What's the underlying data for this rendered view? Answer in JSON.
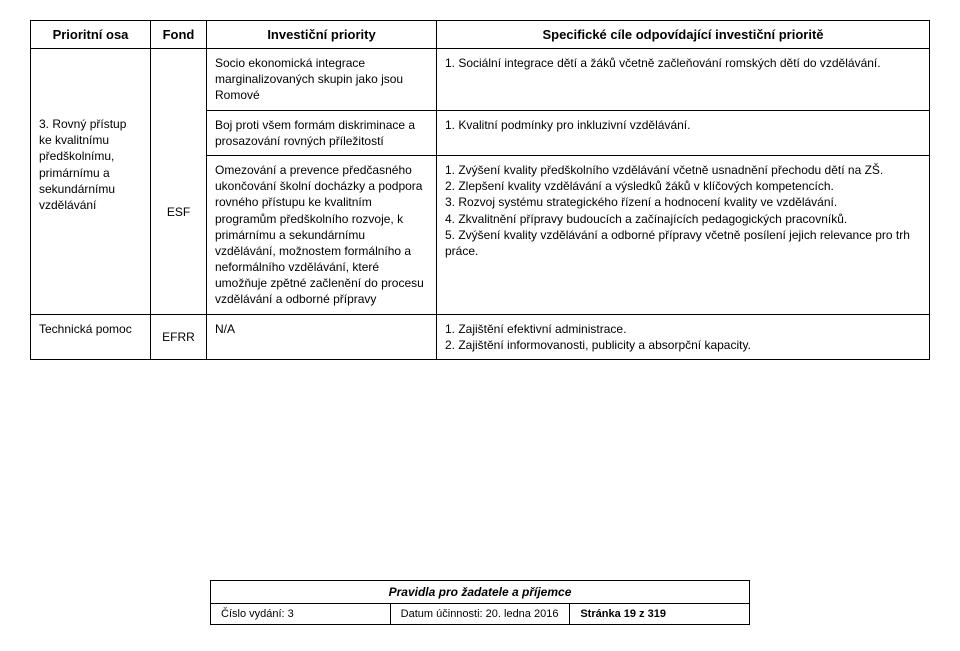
{
  "headers": {
    "osa": "Prioritní osa",
    "fond": "Fond",
    "priority": "Investiční priority",
    "cile": "Specifické cíle odpovídající investiční prioritě"
  },
  "row1": {
    "prio": "Socio ekonomická integrace marginalizovaných skupin jako jsou Romové",
    "cile": "1. Sociální integrace dětí a žáků včetně začleňování romských dětí do vzdělávání."
  },
  "row2": {
    "osa": "3. Rovný přístup ke kvalitnímu předškolnímu, primárnímu a sekundárnímu vzdělávání",
    "fond": "ESF",
    "prio_a": "Boj proti všem formám diskriminace a prosazování rovných příležitostí",
    "cile_a": "1. Kvalitní podmínky pro inkluzivní vzdělávání.",
    "prio_b": "Omezování a prevence předčasného ukončování školní docházky a podpora rovného přístupu ke kvalitním programům předškolního rozvoje, k primárnímu a sekundárnímu vzdělávání, možnostem formálního a neformálního vzdělávání, které umožňuje zpětné začlenění do procesu vzdělávání a odborné přípravy",
    "cile_b1": "1. Zvýšení kvality předškolního vzdělávání včetně usnadnění přechodu dětí na ZŠ.",
    "cile_b2": "2. Zlepšení kvality vzdělávání a výsledků žáků v klíčových kompetencích.",
    "cile_b3": "3. Rozvoj systému strategického řízení a hodnocení kvality ve vzdělávání.",
    "cile_b4": "4. Zkvalitnění přípravy budoucích a začínajících pedagogických pracovníků.",
    "cile_b5": "5. Zvýšení kvality vzdělávání a odborné přípravy včetně posílení jejich relevance pro trh práce."
  },
  "row3": {
    "osa": "Technická pomoc",
    "fond": "EFRR",
    "prio": "N/A",
    "cile1": "1. Zajištění efektivní administrace.",
    "cile2": "2. Zajištění informovanosti, publicity a absorpční kapacity."
  },
  "footer": {
    "title": "Pravidla pro žadatele a příjemce",
    "issue_label": "Číslo vydání: 3",
    "date_label": "Datum účinnosti: 20. ledna 2016",
    "page_label": "Stránka 19 z 319"
  }
}
